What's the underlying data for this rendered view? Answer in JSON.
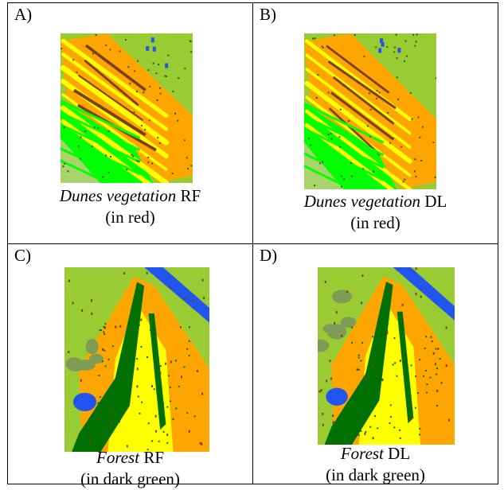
{
  "panels": [
    {
      "label": "A)",
      "class_name": "Dunes vegetation",
      "method": "RF",
      "note": "(in red)",
      "map_type": "dunes"
    },
    {
      "label": "B)",
      "class_name": "Dunes vegetation",
      "method": "DL",
      "note": "(in red)",
      "map_type": "dunes"
    },
    {
      "label": "C)",
      "class_name": "Forest",
      "method": "RF",
      "note": "(in dark green)",
      "map_type": "forest"
    },
    {
      "label": "D)",
      "class_name": "Forest",
      "method": "DL",
      "note": "(in dark green)",
      "map_type": "forest"
    }
  ],
  "palette": {
    "orange": "#ffa500",
    "yellow": "#ffff00",
    "light_green": "#00ff00",
    "olive_green": "#99cc33",
    "pale_green": "#a9d36b",
    "dark_green": "#007000",
    "brown": "#7b3f10",
    "blue": "#2255ee",
    "gray_green": "#7e9c56"
  }
}
